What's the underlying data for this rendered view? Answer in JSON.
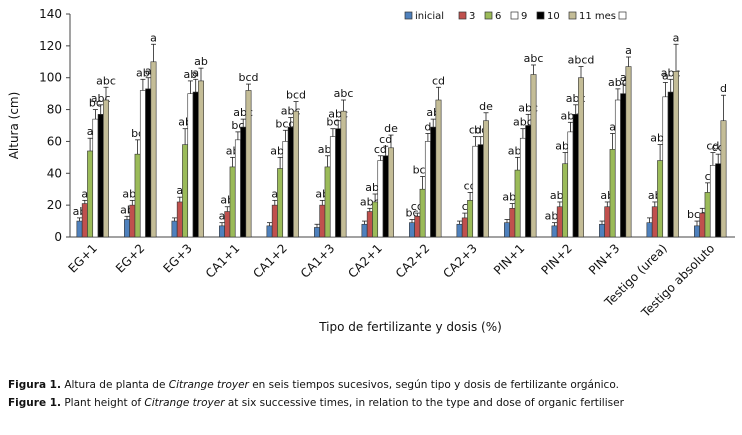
{
  "chart_data": {
    "type": "bar",
    "ylabel": "Altura (cm)",
    "xlabel": "Tipo de fertilizante  y dosis (%)",
    "ylim": [
      0,
      140
    ],
    "yticks": [
      0,
      20,
      40,
      60,
      80,
      100,
      120,
      140
    ],
    "categories": [
      "EG+1",
      "EG+2",
      "EG+3",
      "CA1+1",
      "CA1+2",
      "CA1+3",
      "CA2+1",
      "CA2+2",
      "CA2+3",
      "PIN+1",
      "PIN+2",
      "PIN+3",
      "Testigo (urea)",
      "Testigo absoluto"
    ],
    "legend": [
      "inicial",
      "3",
      "6",
      "9",
      "10",
      "11 mes",
      ""
    ],
    "colors": {
      "inicial": "#4f81bd",
      "3": "#c0504d",
      "6": "#9bbb59",
      "9": "#ffffff",
      "10": "#000000",
      "11 mes": "#c4bd97",
      "outline": "#333333"
    },
    "series": [
      {
        "name": "inicial",
        "values": [
          10,
          11,
          10,
          7,
          7,
          6,
          8,
          9,
          8,
          9,
          7,
          8,
          9,
          7
        ],
        "errors": [
          2,
          2,
          2,
          2,
          2,
          2,
          2,
          2,
          2,
          2,
          2,
          2,
          3,
          3
        ],
        "labels": [
          "ab",
          "ab",
          "",
          "a",
          "",
          "",
          "",
          "bc",
          "",
          "",
          "abc",
          "",
          "",
          "bcd"
        ]
      },
      {
        "name": "3",
        "values": [
          21,
          20,
          22,
          16,
          20,
          20,
          16,
          13,
          12,
          18,
          19,
          19,
          19,
          15
        ],
        "errors": [
          2,
          3,
          3,
          3,
          3,
          3,
          2,
          2,
          3,
          3,
          3,
          3,
          3,
          3
        ],
        "labels": [
          "a",
          "abc",
          "a",
          "ab",
          "a",
          "ab",
          "abc",
          "cd",
          "c",
          "abc",
          "abc",
          "ab",
          "ab",
          ""
        ]
      },
      {
        "name": "6",
        "values": [
          54,
          52,
          58,
          44,
          43,
          44,
          22,
          30,
          23,
          42,
          46,
          55,
          48,
          28
        ],
        "errors": [
          8,
          9,
          10,
          6,
          7,
          7,
          5,
          8,
          5,
          8,
          7,
          10,
          10,
          6
        ],
        "labels": [
          "a",
          "bc",
          "ab",
          "ab",
          "abc",
          "abc",
          "abc",
          "bcd",
          "cd",
          "abc",
          "abc",
          "a",
          "abc",
          "c"
        ]
      },
      {
        "name": "9",
        "values": [
          74,
          92,
          90,
          61,
          60,
          63,
          48,
          60,
          57,
          62,
          66,
          86,
          88,
          45
        ],
        "errors": [
          6,
          7,
          8,
          5,
          7,
          5,
          3,
          5,
          6,
          6,
          6,
          7,
          9,
          8
        ],
        "labels": [
          "bc",
          "ab",
          "ab",
          "bc",
          "bcd",
          "bc",
          "cd",
          "d",
          "cd",
          "abc",
          "abc",
          "abc",
          "a",
          "cd"
        ]
      },
      {
        "name": "10",
        "values": [
          77,
          93,
          91,
          69,
          69,
          68,
          51,
          69,
          58,
          70,
          77,
          90,
          91,
          46
        ],
        "errors": [
          6,
          7,
          8,
          5,
          6,
          5,
          6,
          5,
          5,
          7,
          6,
          6,
          8,
          6
        ],
        "labels": [
          "abc",
          "a",
          "a",
          "abc",
          "abc",
          "abc",
          "cd",
          "ab",
          "bc",
          "abc",
          "abc",
          "a",
          "abc",
          "cd"
        ]
      },
      {
        "name": "11 mes",
        "values": [
          86,
          110,
          98,
          92,
          79,
          79,
          56,
          86,
          73,
          102,
          100,
          107,
          104,
          73
        ],
        "errors": [
          8,
          11,
          8,
          4,
          6,
          7,
          8,
          8,
          5,
          6,
          7,
          6,
          17,
          16
        ],
        "labels": [
          "abc",
          "a",
          "ab",
          "bcd",
          "bcd",
          "abc",
          "de",
          "cd",
          "de",
          "abc",
          "abcd",
          "a",
          "a",
          "d"
        ]
      }
    ]
  },
  "caption": {
    "es_label": "Figura 1.",
    "es_text_a": " Altura de planta de ",
    "es_species": "Citrange troyer",
    "es_text_b": " en seis tiempos sucesivos, según tipo y dosis de fertilizante orgánico.",
    "en_label": "Figure 1.",
    "en_text_a": "  Plant height of ",
    "en_species": "Citrange troyer",
    "en_text_b": " at six successive times, in relation to the type and dose of organic fertiliser"
  }
}
